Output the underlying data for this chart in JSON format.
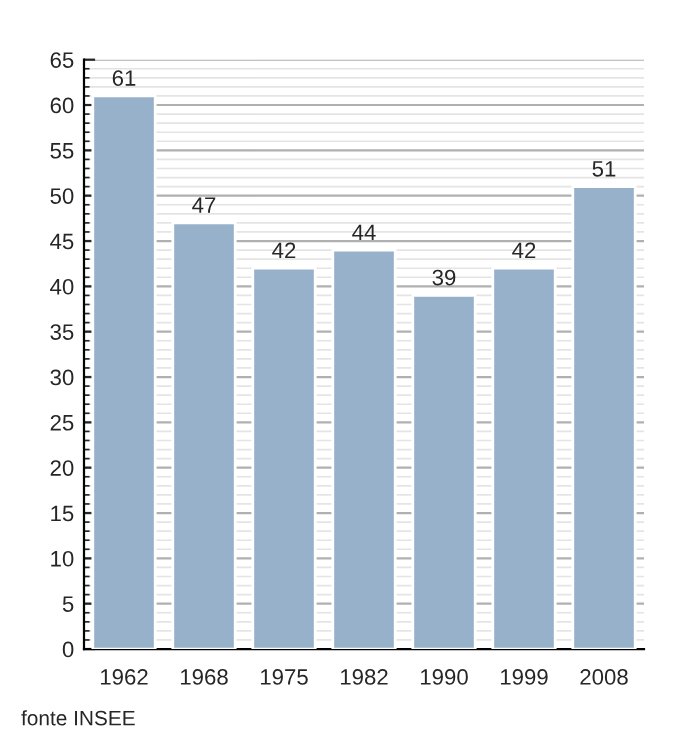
{
  "chart_data": {
    "type": "bar",
    "categories": [
      "1962",
      "1968",
      "1975",
      "1982",
      "1990",
      "1999",
      "2008"
    ],
    "values": [
      61,
      47,
      42,
      44,
      39,
      42,
      51
    ],
    "color": "#98b1ca",
    "ylim": [
      0,
      65
    ],
    "yticks": [
      0,
      5,
      10,
      15,
      20,
      25,
      30,
      35,
      40,
      45,
      50,
      55,
      60,
      65
    ],
    "grid": "y",
    "data_labels": true,
    "annotations": [
      "fonte INSEE"
    ]
  }
}
